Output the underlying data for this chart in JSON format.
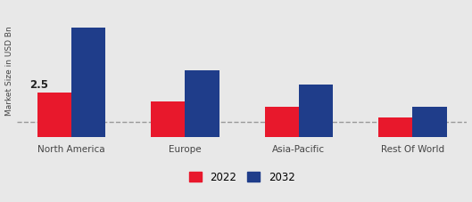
{
  "categories": [
    "North America",
    "Europe",
    "Asia-Pacific",
    "Rest Of World"
  ],
  "values_2022": [
    2.5,
    2.0,
    1.7,
    1.1
  ],
  "values_2032": [
    6.2,
    3.8,
    3.0,
    1.7
  ],
  "color_2022": "#e8182c",
  "color_2032": "#1f3d8a",
  "ylabel": "Market Size in USD Bn",
  "annotation_text": "2.5",
  "bar_width": 0.3,
  "dashed_line_y": 0.85,
  "ylim": [
    0,
    7.5
  ],
  "legend_labels": [
    "2022",
    "2032"
  ],
  "background_color": "#e8e8e8",
  "figsize": [
    5.29,
    2.27
  ],
  "dpi": 100
}
